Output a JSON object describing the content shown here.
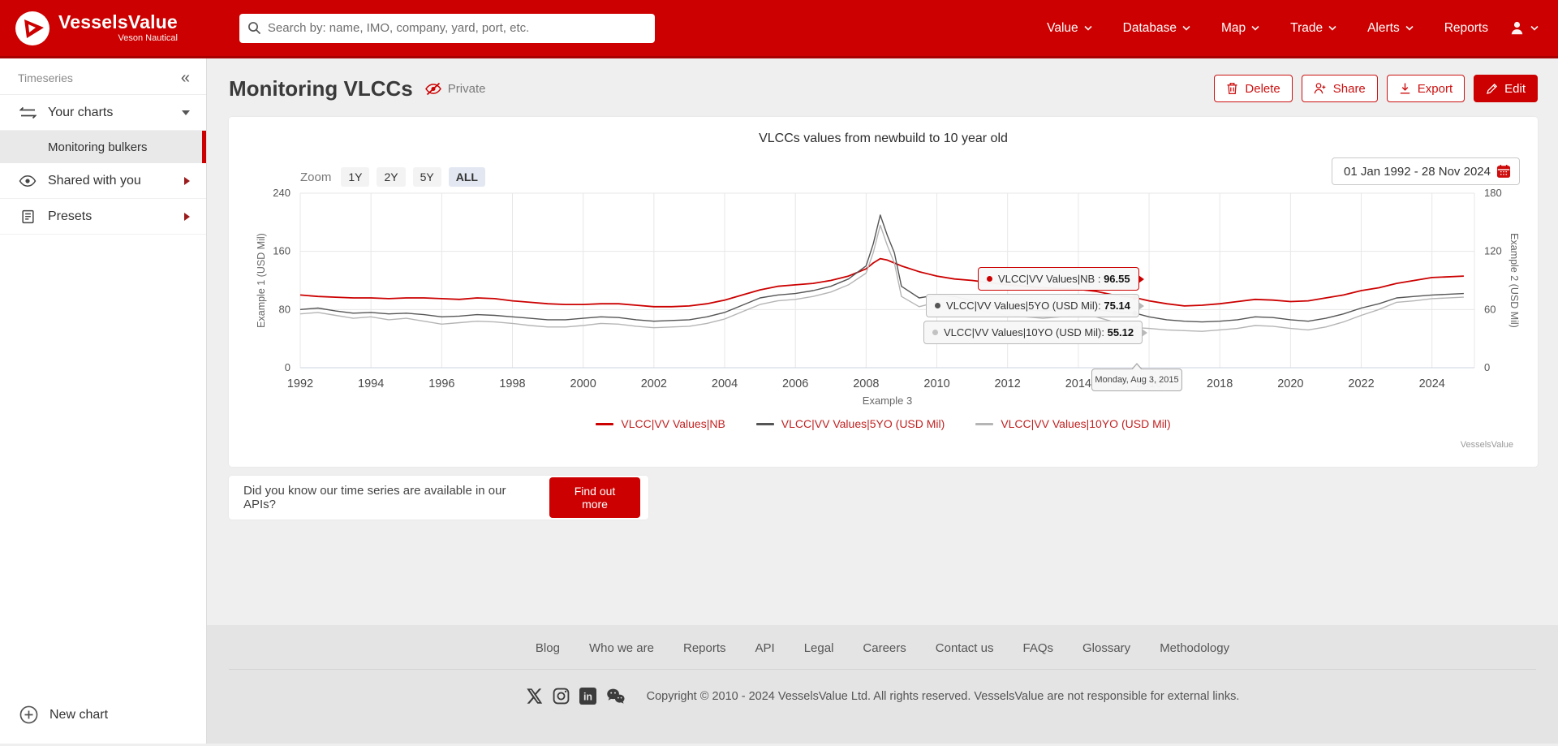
{
  "brand": {
    "name": "VesselsValue",
    "subtitle": "Veson Nautical",
    "red": "#cc0000"
  },
  "navbar": {
    "search_placeholder": "Search by: name, IMO, company, yard, port, etc.",
    "items": [
      {
        "label": "Value",
        "chevron": true
      },
      {
        "label": "Database",
        "chevron": true
      },
      {
        "label": "Map",
        "chevron": true
      },
      {
        "label": "Trade",
        "chevron": true
      },
      {
        "label": "Alerts",
        "chevron": true
      },
      {
        "label": "Reports",
        "chevron": false
      }
    ]
  },
  "sidebar": {
    "section_label": "Timeseries",
    "your_charts_label": "Your charts",
    "selected_chart": "Monitoring bulkers",
    "shared_label": "Shared with you",
    "presets_label": "Presets",
    "new_chart_label": "New chart"
  },
  "page": {
    "title": "Monitoring VLCCs",
    "privacy": "Private",
    "delete_label": "Delete",
    "share_label": "Share",
    "export_label": "Export",
    "edit_label": "Edit"
  },
  "chart": {
    "zoom_label": "Zoom",
    "zoom_options": [
      "1Y",
      "2Y",
      "5Y",
      "ALL"
    ],
    "zoom_selected": "ALL",
    "date_range": "01 Jan 1992 - 28 Nov 2024",
    "x_tooltip": "Monday, Aug 3, 2015",
    "watermark": "VesselsValue",
    "tooltips": [
      {
        "label": "VLCC|VV Values|NB :",
        "value": "96.55",
        "dot": "#cc0000",
        "style": "red"
      },
      {
        "label": "VLCC|VV Values|5YO (USD Mil):",
        "value": "75.14",
        "dot": "#555555",
        "style": "gray"
      },
      {
        "label": "VLCC|VV Values|10YO (USD Mil):",
        "value": "55.12",
        "dot": "#c2c2c2",
        "style": "gray"
      }
    ]
  },
  "chart_data": {
    "type": "line",
    "title": "VLCCs values from newbuild to 10 year old",
    "xlabel": "Example 3",
    "ylabel_left": "Example 1 (USD Mil)",
    "ylabel_right": "Example 2 (USD Mil)",
    "ylim_left": [
      0,
      240
    ],
    "yticks_left": [
      0,
      80,
      160,
      240
    ],
    "ylim_right": [
      0,
      180
    ],
    "yticks_right": [
      0,
      60,
      120,
      180
    ],
    "xticks": [
      1992,
      1994,
      1996,
      1998,
      2000,
      2002,
      2004,
      2006,
      2008,
      2010,
      2012,
      2014,
      2016,
      2018,
      2020,
      2022,
      2024
    ],
    "x_range_end": 2025.2,
    "grid": true,
    "legend_position": "bottom",
    "x": [
      1992,
      1992.5,
      1993,
      1993.5,
      1994,
      1994.5,
      1995,
      1995.5,
      1996,
      1996.5,
      1997,
      1997.5,
      1998,
      1998.5,
      1999,
      1999.5,
      2000,
      2000.5,
      2001,
      2001.5,
      2002,
      2002.5,
      2003,
      2003.5,
      2004,
      2004.5,
      2005,
      2005.5,
      2006,
      2006.5,
      2007,
      2007.5,
      2008,
      2008.2,
      2008.4,
      2008.6,
      2008.8,
      2009,
      2009.5,
      2010,
      2010.5,
      2011,
      2011.5,
      2012,
      2012.5,
      2013,
      2013.5,
      2014,
      2014.5,
      2015,
      2015.6,
      2016,
      2016.5,
      2017,
      2017.5,
      2018,
      2018.5,
      2019,
      2019.5,
      2020,
      2020.5,
      2021,
      2021.5,
      2022,
      2022.5,
      2023,
      2023.5,
      2024,
      2024.9
    ],
    "series": [
      {
        "name": "VLCC|VV Values|NB",
        "color": "#cc0000",
        "width": 1.8,
        "values": [
          100,
          98,
          97,
          96,
          96,
          95,
          96,
          96,
          95,
          94,
          96,
          95,
          92,
          90,
          88,
          87,
          87,
          88,
          88,
          86,
          84,
          84,
          85,
          88,
          93,
          100,
          107,
          112,
          114,
          116,
          120,
          126,
          136,
          144,
          150,
          148,
          144,
          140,
          132,
          126,
          122,
          120,
          117,
          114,
          112,
          110,
          109,
          108,
          105,
          100,
          96.5,
          92,
          88,
          85,
          86,
          88,
          91,
          94,
          93,
          91,
          92,
          96,
          100,
          106,
          110,
          116,
          120,
          124,
          126
        ]
      },
      {
        "name": "VLCC|VV Values|5YO (USD Mil)",
        "color": "#555555",
        "width": 1.4,
        "values": [
          80,
          82,
          78,
          75,
          76,
          74,
          75,
          73,
          70,
          71,
          73,
          72,
          70,
          68,
          66,
          66,
          68,
          70,
          69,
          66,
          64,
          65,
          66,
          70,
          76,
          86,
          96,
          100,
          102,
          106,
          112,
          122,
          140,
          170,
          210,
          182,
          158,
          112,
          96,
          100,
          98,
          92,
          86,
          82,
          80,
          78,
          80,
          82,
          80,
          77,
          75.1,
          70,
          66,
          64,
          63,
          64,
          66,
          70,
          69,
          66,
          64,
          68,
          74,
          82,
          88,
          96,
          98,
          100,
          102
        ]
      },
      {
        "name": "VLCC|VV Values|10YO (USD Mil)",
        "color": "#b5b5b5",
        "width": 1.4,
        "values": [
          74,
          76,
          72,
          68,
          70,
          66,
          68,
          64,
          60,
          62,
          64,
          63,
          61,
          58,
          56,
          56,
          58,
          61,
          60,
          57,
          55,
          56,
          57,
          61,
          67,
          77,
          87,
          92,
          94,
          98,
          104,
          114,
          130,
          158,
          196,
          168,
          144,
          98,
          84,
          90,
          88,
          82,
          76,
          72,
          70,
          68,
          70,
          72,
          70,
          63,
          55.1,
          54,
          52,
          51,
          50,
          52,
          54,
          58,
          57,
          54,
          52,
          56,
          63,
          72,
          80,
          90,
          92,
          95,
          97
        ]
      }
    ]
  },
  "api_banner": {
    "text": "Did you know our time series are available in our APIs?",
    "button": "Find out more"
  },
  "footer": {
    "links": [
      "Blog",
      "Who we are",
      "Reports",
      "API",
      "Legal",
      "Careers",
      "Contact us",
      "FAQs",
      "Glossary",
      "Methodology"
    ],
    "social": [
      "x-icon",
      "instagram-icon",
      "linkedin-icon",
      "wechat-icon"
    ],
    "copyright": "Copyright © 2010 - 2024 VesselsValue Ltd. All rights reserved. VesselsValue are not responsible for external links."
  }
}
